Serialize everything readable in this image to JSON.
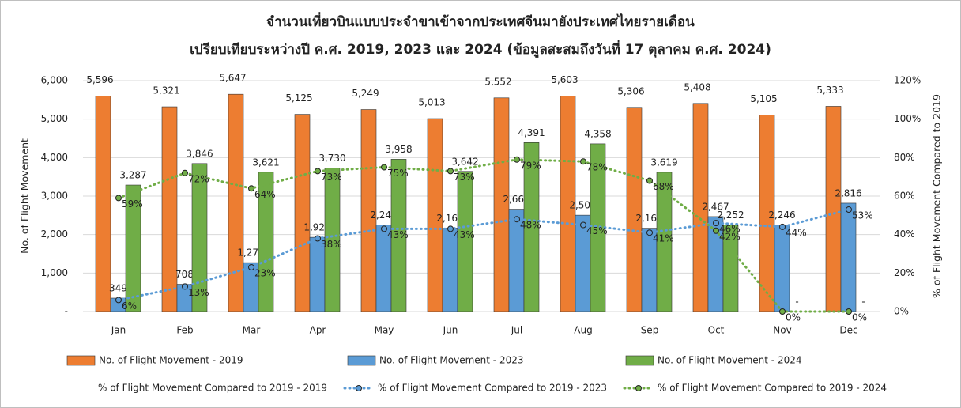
{
  "chart_data": {
    "type": "bar_line",
    "title": "จำนวนเที่ยวบินแบบประจำขาเข้าจากประเทศจีนมายังประเทศไทยรายเดือน",
    "subtitle": "เปรียบเทียบระหว่างปี  ค.ศ. 2019, 2023 และ 2024 (ข้อมูลสะสมถึงวันที่ 17 ตุลาคม ค.ศ. 2024)",
    "y_label": "No. of Flight Movement",
    "y2_label": "% of Flight Movement Compared to 2019",
    "categories": [
      "Jan",
      "Feb",
      "Mar",
      "Apr",
      "May",
      "Jun",
      "Jul",
      "Aug",
      "Sep",
      "Oct",
      "Nov",
      "Dec"
    ],
    "ylim": [
      0,
      6000
    ],
    "yticks": [
      {
        "value": 0,
        "label": "-"
      },
      {
        "value": 1000,
        "label": "1,000"
      },
      {
        "value": 2000,
        "label": "2,000"
      },
      {
        "value": 3000,
        "label": "3,000"
      },
      {
        "value": 4000,
        "label": "4,000"
      },
      {
        "value": 5000,
        "label": "5,000"
      },
      {
        "value": 6000,
        "label": "6,000"
      }
    ],
    "y2lim": [
      0,
      120
    ],
    "y2ticks": [
      {
        "value": 0,
        "label": "0%"
      },
      {
        "value": 20,
        "label": "20%"
      },
      {
        "value": 40,
        "label": "40%"
      },
      {
        "value": 60,
        "label": "60%"
      },
      {
        "value": 80,
        "label": "80%"
      },
      {
        "value": 100,
        "label": "100%"
      },
      {
        "value": 120,
        "label": "120%"
      }
    ],
    "grid": true,
    "series": [
      {
        "name": "No. of Flight Movement - 2019",
        "type": "bar",
        "color": "#ed7d31",
        "values": [
          5596,
          5321,
          5647,
          5125,
          5249,
          5013,
          5552,
          5603,
          5306,
          5408,
          5105,
          5333
        ],
        "value_labels": [
          "5,596",
          "5,321",
          "5,647",
          "5,125",
          "5,249",
          "5,013",
          "5,552",
          "5,603",
          "5,306",
          "5,408",
          "5,105",
          "5,333"
        ]
      },
      {
        "name": "No. of Flight Movement - 2023",
        "type": "bar",
        "color": "#5b9bd5",
        "values": [
          349,
          708,
          1271,
          1929,
          2248,
          2168,
          2660,
          2504,
          2166,
          2467,
          2246,
          2816
        ],
        "value_labels": [
          "349",
          "708",
          "1,271",
          "1,929",
          "2,248",
          "2,168",
          "2,660",
          "2,504",
          "2,166",
          "2,467",
          "2,246",
          "2,816"
        ]
      },
      {
        "name": "No. of Flight Movement - 2024",
        "type": "bar",
        "color": "#70ad47",
        "values": [
          3287,
          3846,
          3621,
          3730,
          3958,
          3642,
          4391,
          4358,
          3619,
          2252,
          0,
          0
        ],
        "value_labels": [
          "3,287",
          "3,846",
          "3,621",
          "3,730",
          "3,958",
          "3,642",
          "4,391",
          "4,358",
          "3,619",
          "2,252",
          "-",
          "-"
        ]
      },
      {
        "name": "% of Flight Movement Compared to 2019 - 2019",
        "type": "line",
        "axis": "y2",
        "values": [
          null,
          null,
          null,
          null,
          null,
          null,
          null,
          null,
          null,
          null,
          null,
          null
        ]
      },
      {
        "name": "% of Flight Movement Compared to 2019 - 2023",
        "type": "line",
        "axis": "y2",
        "color": "#5b9bd5",
        "values": [
          6,
          13,
          23,
          38,
          43,
          43,
          48,
          45,
          41,
          46,
          44,
          53
        ],
        "value_labels": [
          "6%",
          "13%",
          "23%",
          "38%",
          "43%",
          "43%",
          "48%",
          "45%",
          "41%",
          "46%",
          "44%",
          "53%"
        ]
      },
      {
        "name": "% of Flight Movement Compared to 2019 - 2024",
        "type": "line",
        "axis": "y2",
        "color": "#70ad47",
        "values": [
          59,
          72,
          64,
          73,
          75,
          73,
          79,
          78,
          68,
          42,
          0,
          0
        ],
        "value_labels": [
          "59%",
          "72%",
          "64%",
          "73%",
          "75%",
          "73%",
          "79%",
          "78%",
          "68%",
          "42%",
          "0%",
          "0%"
        ]
      }
    ]
  }
}
